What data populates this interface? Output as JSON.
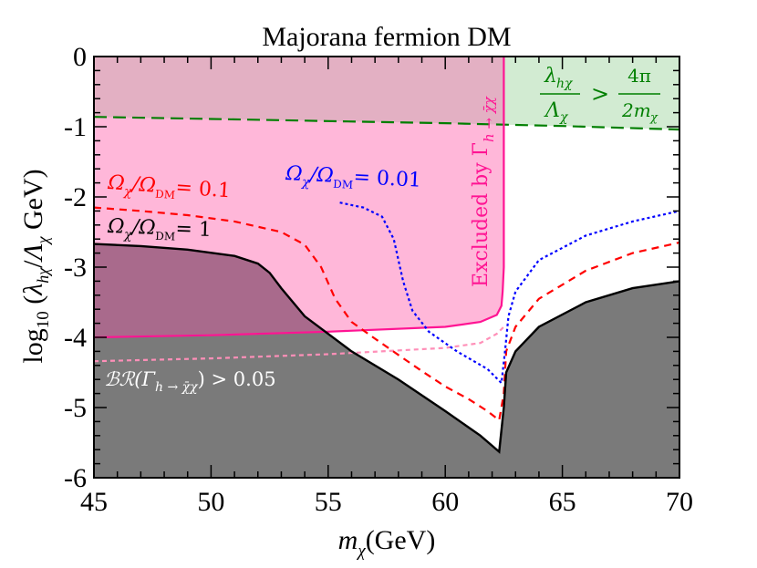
{
  "chart_data": {
    "type": "area",
    "title": "Majorana fermion DM",
    "xlabel": "m_χ(GeV)",
    "ylabel": "log₁₀(λ_hχ/Λ_χ GeV)",
    "xlim": [
      45,
      70
    ],
    "ylim": [
      -6,
      0
    ],
    "xticks": [
      "45",
      "50",
      "55",
      "60",
      "65",
      "70"
    ],
    "yticks": [
      "0",
      "-1",
      "-2",
      "-3",
      "-4",
      "-5",
      "-6"
    ],
    "grid": false,
    "regions": [
      {
        "name": "invisible-width-excluded",
        "label": "Excluded by Γ_{h→χ̄χ}",
        "color": "#ffb7d9",
        "boundary_x": [
          45,
          50,
          55,
          60,
          61.5,
          62.2,
          62.4,
          62.45,
          62.5,
          62.5
        ],
        "boundary_y": [
          -4.0,
          -3.97,
          -3.92,
          -3.85,
          -3.78,
          -3.68,
          -3.55,
          -3.35,
          -3.0,
          0
        ]
      },
      {
        "name": "perturbativity-excluded",
        "label": "λ_hχ/Λ_χ > 4π/(2m_χ)",
        "color": "#d2ebd2",
        "boundary_x": [
          45,
          50,
          55,
          60,
          62.5,
          65,
          70
        ],
        "boundary_y": [
          -0.86,
          -0.89,
          -0.92,
          -0.95,
          -0.97,
          -0.99,
          -1.04
        ]
      },
      {
        "name": "overabundance-excluded",
        "label": "Ω_χ/Ω_DM = 1",
        "color": "#7a7a7a",
        "boundary_x": [
          45,
          47,
          49,
          51,
          52,
          52.5,
          53,
          54,
          56,
          58,
          60,
          61.5,
          62.3,
          62.5,
          62.6,
          63,
          64,
          66,
          68,
          70
        ],
        "boundary_y": [
          -2.67,
          -2.7,
          -2.75,
          -2.84,
          -2.95,
          -3.08,
          -3.3,
          -3.7,
          -4.2,
          -4.6,
          -5.05,
          -5.4,
          -5.63,
          -5.0,
          -4.5,
          -4.2,
          -3.85,
          -3.5,
          -3.3,
          -3.2
        ]
      }
    ],
    "series": [
      {
        "name": "Ω_χ/Ω_DM = 0.1",
        "color": "#ff0000",
        "style": "dashed",
        "x": [
          45,
          47,
          49,
          51,
          53,
          54,
          54.7,
          55.3,
          56,
          57,
          58,
          59,
          60,
          61,
          61.8,
          62.3,
          62.5,
          62.6,
          63,
          64,
          66,
          68,
          70
        ],
        "y": [
          -2.15,
          -2.2,
          -2.26,
          -2.35,
          -2.5,
          -2.68,
          -3.0,
          -3.45,
          -3.78,
          -4.02,
          -4.25,
          -4.48,
          -4.7,
          -4.88,
          -5.05,
          -5.18,
          -4.8,
          -4.2,
          -3.85,
          -3.45,
          -3.05,
          -2.8,
          -2.65
        ]
      },
      {
        "name": "Ω_χ/Ω_DM = 0.01",
        "color": "#0000ff",
        "style": "dotted",
        "x": [
          55.5,
          56.5,
          57.3,
          57.8,
          58.2,
          58.6,
          59.3,
          60.5,
          61.8,
          62.4,
          62.55,
          62.7,
          63,
          64,
          66,
          68,
          70
        ],
        "y": [
          -2.08,
          -2.15,
          -2.28,
          -2.6,
          -3.2,
          -3.62,
          -3.92,
          -4.2,
          -4.45,
          -4.65,
          -4.2,
          -3.7,
          -3.35,
          -2.9,
          -2.55,
          -2.35,
          -2.2
        ]
      },
      {
        "name": "BR(Γ_{h→χ̄χ}) > 0.05",
        "color": "#ff8fb8",
        "style": "dashed",
        "x": [
          45,
          50,
          55,
          60,
          61.5,
          62.2,
          62.5
        ],
        "y": [
          -4.34,
          -4.3,
          -4.24,
          -4.15,
          -4.08,
          -3.95,
          -3.85
        ]
      }
    ],
    "annotations": {
      "invisible_width": "Excluded by Γ",
      "invisible_width_sub": "h → χ̄χ",
      "perturbativity_lhs_num": "λ",
      "perturbativity_lhs_num_sub": "hχ",
      "perturbativity_lhs_den": "Λ",
      "perturbativity_lhs_den_sub": "χ",
      "perturbativity_gt": ">",
      "perturbativity_rhs_num": "4π",
      "perturbativity_rhs_den": "2m",
      "perturbativity_rhs_den_sub": "χ",
      "relic_01_lhs": "Ω",
      "relic_01_sub": "χ",
      "relic_01_mid": "/Ω",
      "relic_01_sub2": "DM",
      "relic_01_rhs": "= 0.1",
      "relic_001_lhs": "Ω",
      "relic_001_sub": "χ",
      "relic_001_mid": "/Ω",
      "relic_001_sub2": "DM",
      "relic_001_rhs": "= 0.01",
      "relic_1_lhs": "Ω",
      "relic_1_sub": "χ",
      "relic_1_mid": "/Ω",
      "relic_1_sub2": "DM",
      "relic_1_rhs": "= 1",
      "br_lhs": "ℬℛ(Γ",
      "br_sub": "h → χ̄χ",
      "br_rhs": ") > 0.05"
    }
  },
  "colors": {
    "pink_region": "#ffb7d9",
    "green_region": "#d2ebd2",
    "gray_region": "#7a7a7a",
    "overlap": "#a96a8c",
    "pink_line": "#ff1493",
    "green_line": "#007f00"
  }
}
